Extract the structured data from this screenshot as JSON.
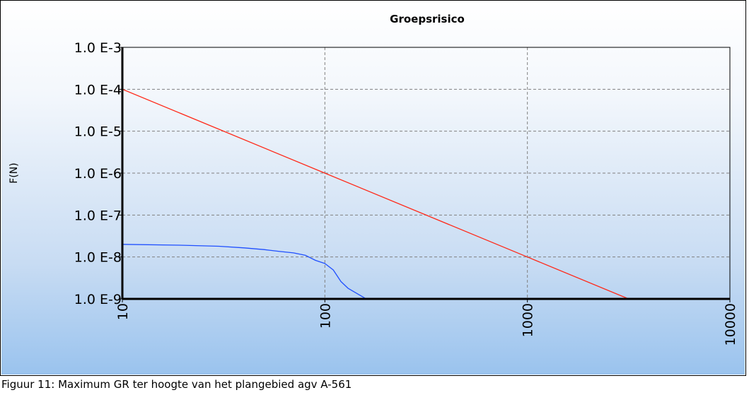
{
  "caption": "Figuur 11: Maximum GR ter hoogte van het plangebied agv A-561",
  "colors": {
    "series_norm": "#ff2a1a",
    "series_curve": "#1f4fff",
    "grid": "#808080"
  },
  "chart_data": {
    "type": "line",
    "title": "Groepsrisico",
    "xlabel": "",
    "ylabel": "F(N)",
    "xscale": "log",
    "yscale": "log",
    "xlim": [
      10,
      10000
    ],
    "ylim": [
      1e-09,
      0.001
    ],
    "xticks": [
      10,
      100,
      1000,
      10000
    ],
    "xtick_labels": [
      "10",
      "100",
      "1000",
      "10000"
    ],
    "yticks": [
      1e-09,
      1e-08,
      1e-07,
      1e-06,
      1e-05,
      0.0001,
      0.001
    ],
    "ytick_labels": [
      "1.0 E-9",
      "1.0 E-8",
      "1.0 E-7",
      "1.0 E-6",
      "1.0 E-5",
      "1.0 E-4",
      "1.0 E-3"
    ],
    "grid": true,
    "legend": "none",
    "series": [
      {
        "color": "#ff2a1a",
        "x": [
          10,
          100,
          1000,
          3162
        ],
        "y": [
          0.0001,
          1e-06,
          1e-08,
          1e-09
        ]
      },
      {
        "color": "#1f4fff",
        "x": [
          10,
          20,
          30,
          40,
          50,
          60,
          70,
          80,
          90,
          100,
          110,
          120,
          130,
          150,
          160
        ],
        "y": [
          2e-08,
          1.9e-08,
          1.8e-08,
          1.65e-08,
          1.5e-08,
          1.35e-08,
          1.25e-08,
          1.1e-08,
          8.3e-09,
          7e-09,
          4.9e-09,
          2.6e-09,
          1.8e-09,
          1.2e-09,
          1e-09
        ]
      }
    ]
  }
}
